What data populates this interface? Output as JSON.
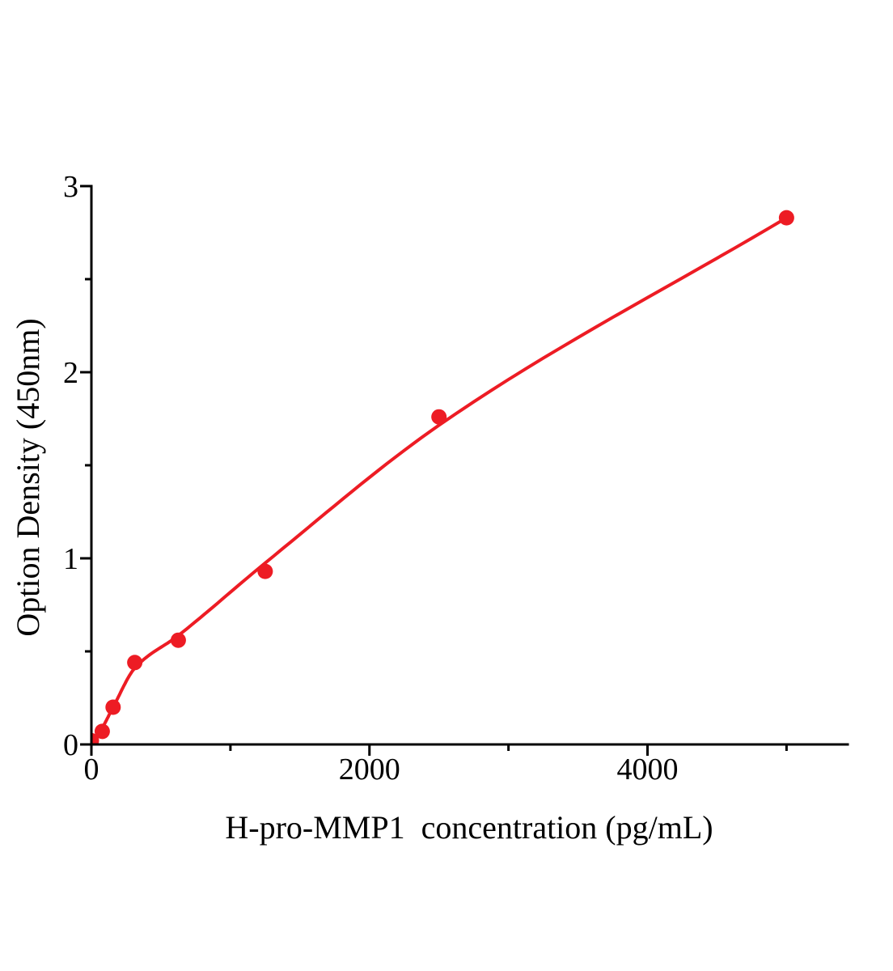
{
  "figure": {
    "background": "#ffffff",
    "axis_color": "#000000",
    "text_color": "#000000"
  },
  "chart_data": {
    "type": "scatter",
    "title": "",
    "grid": false,
    "legend": null,
    "x_axis": {
      "label": "H-pro-MMP1  concentration (pg/mL)",
      "range": [
        0,
        5440
      ],
      "major_ticks": [
        {
          "value": 0,
          "label": "0"
        },
        {
          "value": 2000,
          "label": "2000"
        },
        {
          "value": 4000,
          "label": "4000"
        }
      ],
      "minor_ticks": [
        1000,
        3000,
        5000
      ]
    },
    "y_axis": {
      "label": "Option Density (450nm)",
      "range": [
        0,
        3
      ],
      "major_ticks": [
        {
          "value": 0,
          "label": "0"
        },
        {
          "value": 1,
          "label": "1"
        },
        {
          "value": 2,
          "label": "2"
        },
        {
          "value": 3,
          "label": "3"
        }
      ],
      "minor_ticks": [
        0.5,
        1.5,
        2.5
      ]
    },
    "series": [
      {
        "marker": "circle",
        "color": "#ed1c24",
        "points": [
          [
            0,
            0.02
          ],
          [
            78,
            0.07
          ],
          [
            156,
            0.2
          ],
          [
            312,
            0.44
          ],
          [
            625,
            0.56
          ],
          [
            1250,
            0.93
          ],
          [
            2500,
            1.76
          ],
          [
            5000,
            2.83
          ]
        ],
        "fit_curve": [
          [
            0,
            0.01
          ],
          [
            78,
            0.09
          ],
          [
            156,
            0.2
          ],
          [
            312,
            0.41
          ],
          [
            625,
            0.585
          ],
          [
            1250,
            0.975
          ],
          [
            2500,
            1.715
          ],
          [
            5000,
            2.83
          ]
        ]
      }
    ]
  }
}
